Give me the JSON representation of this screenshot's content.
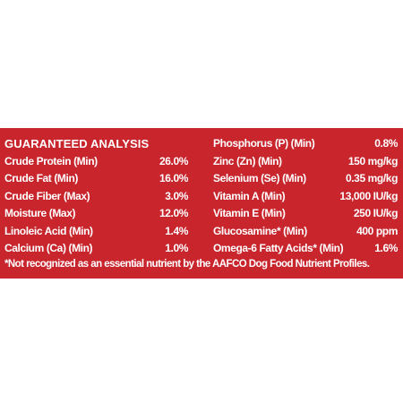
{
  "panel": {
    "background_color": "#c8252d",
    "text_color": "#ffffff",
    "title": "GUARANTEED ANALYSIS",
    "left_rows": [
      {
        "label": "Crude Protein (Min)",
        "value": "26.0%"
      },
      {
        "label": "Crude Fat (Min)",
        "value": "16.0%"
      },
      {
        "label": "Crude Fiber (Max)",
        "value": "3.0%"
      },
      {
        "label": "Moisture (Max)",
        "value": "12.0%"
      },
      {
        "label": "Linoleic Acid (Min)",
        "value": "1.4%"
      },
      {
        "label": "Calcium (Ca) (Min)",
        "value": "1.0%"
      }
    ],
    "right_rows": [
      {
        "label": "Phosphorus (P) (Min)",
        "value": "0.8%"
      },
      {
        "label": "Zinc (Zn) (Min)",
        "value": "150 mg/kg"
      },
      {
        "label": "Selenium (Se) (Min)",
        "value": "0.35 mg/kg"
      },
      {
        "label": "Vitamin A (Min)",
        "value": "13,000 IU/kg"
      },
      {
        "label": "Vitamin E (Min)",
        "value": "250 IU/kg"
      },
      {
        "label": "Glucosamine* (Min)",
        "value": "400 ppm"
      },
      {
        "label": "Omega-6 Fatty Acids* (Min)",
        "value": "1.6%"
      }
    ],
    "footnote": "*Not recognized as an essential nutrient by the AAFCO Dog Food Nutrient Profiles."
  }
}
